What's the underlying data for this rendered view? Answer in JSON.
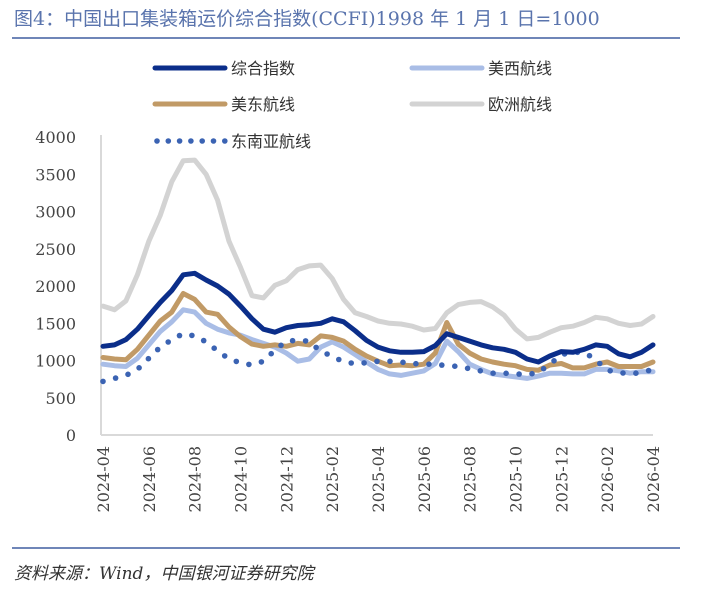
{
  "figure": {
    "title": "图4：中国出口集装箱运价综合指数(CCFI)1998 年 1 月 1 日=1000",
    "source": "资料来源：Wind，中国银河证券研究院"
  },
  "chart_data": {
    "type": "line",
    "title": "图4：中国出口集装箱运价综合指数(CCFI)1998 年 1 月 1 日=1000",
    "xlabel": "",
    "ylabel": "",
    "ylim": [
      0,
      4000
    ],
    "yticks": [
      "0",
      "500",
      "1000",
      "1500",
      "2000",
      "2500",
      "3000",
      "3500",
      "4000"
    ],
    "ytick_values": [
      0,
      500,
      1000,
      1500,
      2000,
      2500,
      3000,
      3500,
      4000
    ],
    "xticks": [
      "2024-04",
      "2024-06",
      "2024-08",
      "2024-10",
      "2024-12",
      "2025-02",
      "2025-04",
      "2025-06",
      "2025-08",
      "2025-10",
      "2025-12",
      "2026-02",
      "2026-04"
    ],
    "x_range": [
      "2024-04",
      "2026-04"
    ],
    "x_points": 49,
    "x_interval": "half-month",
    "grid": false,
    "legend_position": "top",
    "series": [
      {
        "name": "综合指数",
        "color": "#0b2e8a",
        "style": "solid",
        "values": [
          1190,
          1210,
          1280,
          1420,
          1600,
          1780,
          1940,
          2150,
          2170,
          2080,
          2000,
          1890,
          1730,
          1560,
          1420,
          1380,
          1440,
          1470,
          1480,
          1500,
          1560,
          1520,
          1400,
          1270,
          1180,
          1130,
          1110,
          1110,
          1120,
          1200,
          1360,
          1310,
          1260,
          1210,
          1170,
          1150,
          1110,
          1020,
          980,
          1060,
          1120,
          1110,
          1150,
          1210,
          1190,
          1090,
          1050,
          1110,
          1210
        ]
      },
      {
        "name": "美西航线",
        "color": "#a9bde6",
        "style": "solid",
        "values": [
          950,
          930,
          920,
          1030,
          1210,
          1390,
          1520,
          1680,
          1650,
          1500,
          1420,
          1370,
          1340,
          1280,
          1230,
          1180,
          1100,
          990,
          1020,
          1180,
          1250,
          1180,
          1080,
          980,
          880,
          820,
          800,
          830,
          860,
          960,
          1260,
          1120,
          950,
          880,
          820,
          800,
          780,
          760,
          790,
          830,
          830,
          820,
          820,
          880,
          880,
          860,
          830,
          850,
          850
        ]
      },
      {
        "name": "美东航线",
        "color": "#c19a66",
        "style": "solid",
        "values": [
          1040,
          1020,
          1010,
          1150,
          1340,
          1530,
          1650,
          1900,
          1820,
          1650,
          1620,
          1450,
          1320,
          1220,
          1190,
          1210,
          1190,
          1230,
          1210,
          1330,
          1310,
          1260,
          1150,
          1060,
          990,
          930,
          940,
          930,
          950,
          1100,
          1510,
          1220,
          1100,
          1020,
          980,
          950,
          930,
          880,
          870,
          940,
          960,
          900,
          900,
          950,
          980,
          920,
          920,
          920,
          980
        ]
      },
      {
        "name": "欧洲航线",
        "color": "#d3d3d3",
        "style": "solid",
        "values": [
          1730,
          1680,
          1800,
          2150,
          2600,
          2950,
          3400,
          3680,
          3690,
          3500,
          3150,
          2600,
          2250,
          1870,
          1840,
          2010,
          2070,
          2220,
          2270,
          2280,
          2100,
          1820,
          1640,
          1590,
          1530,
          1500,
          1490,
          1460,
          1410,
          1430,
          1640,
          1750,
          1780,
          1790,
          1720,
          1610,
          1420,
          1290,
          1310,
          1380,
          1440,
          1460,
          1510,
          1580,
          1560,
          1500,
          1470,
          1490,
          1590
        ]
      },
      {
        "name": "东南亚航线",
        "color": "#3b63b3",
        "style": "dotted",
        "values": [
          720,
          760,
          800,
          880,
          1030,
          1180,
          1280,
          1360,
          1330,
          1250,
          1130,
          1020,
          970,
          940,
          990,
          1140,
          1260,
          1270,
          1260,
          1120,
          1060,
          980,
          960,
          970,
          990,
          990,
          980,
          960,
          950,
          950,
          930,
          920,
          890,
          860,
          830,
          830,
          820,
          810,
          840,
          950,
          1080,
          1110,
          1110,
          1010,
          870,
          840,
          820,
          840,
          880
        ]
      }
    ]
  }
}
